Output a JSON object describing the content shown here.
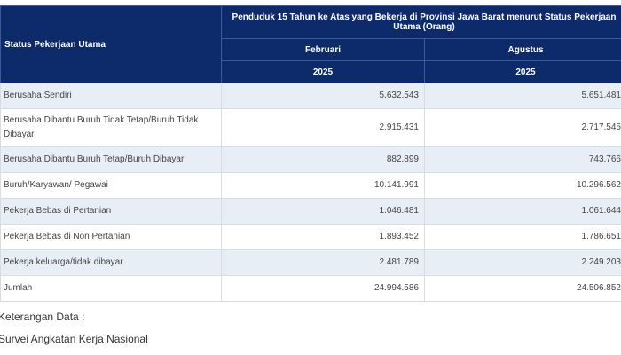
{
  "table": {
    "row_header": "Status Pekerjaan Utama",
    "title": "Penduduk 15 Tahun ke Atas yang Bekerja di Provinsi Jawa Barat menurut Status Pekerjaan Utama (Orang)",
    "columns": [
      {
        "month": "Februari",
        "year": "2025"
      },
      {
        "month": "Agustus",
        "year": "2025"
      }
    ],
    "rows": [
      {
        "label": "Berusaha Sendiri",
        "values": [
          "5.632.543",
          "5.651.481"
        ]
      },
      {
        "label": "Berusaha Dibantu Buruh Tidak Tetap/Buruh Tidak Dibayar",
        "values": [
          "2.915.431",
          "2.717.545"
        ]
      },
      {
        "label": "Berusaha Dibantu Buruh Tetap/Buruh Dibayar",
        "values": [
          "882.899",
          "743.766"
        ]
      },
      {
        "label": "Buruh/Karyawan/ Pegawai",
        "values": [
          "10.141.991",
          "10.296.562"
        ]
      },
      {
        "label": "Pekerja Bebas di Pertanian",
        "values": [
          "1.046.481",
          "1.061.644"
        ]
      },
      {
        "label": "Pekerja Bebas di Non Pertanian",
        "values": [
          "1.893.452",
          "1.786.651"
        ]
      },
      {
        "label": "Pekerja keluarga/tidak dibayar",
        "values": [
          "2.481.789",
          "2.249.203"
        ]
      },
      {
        "label": "Jumlah",
        "values": [
          "24.994.586",
          "24.506.852"
        ]
      }
    ]
  },
  "notes": {
    "heading": "Keterangan Data :",
    "source": "Survei Angkatan Kerja Nasional"
  }
}
